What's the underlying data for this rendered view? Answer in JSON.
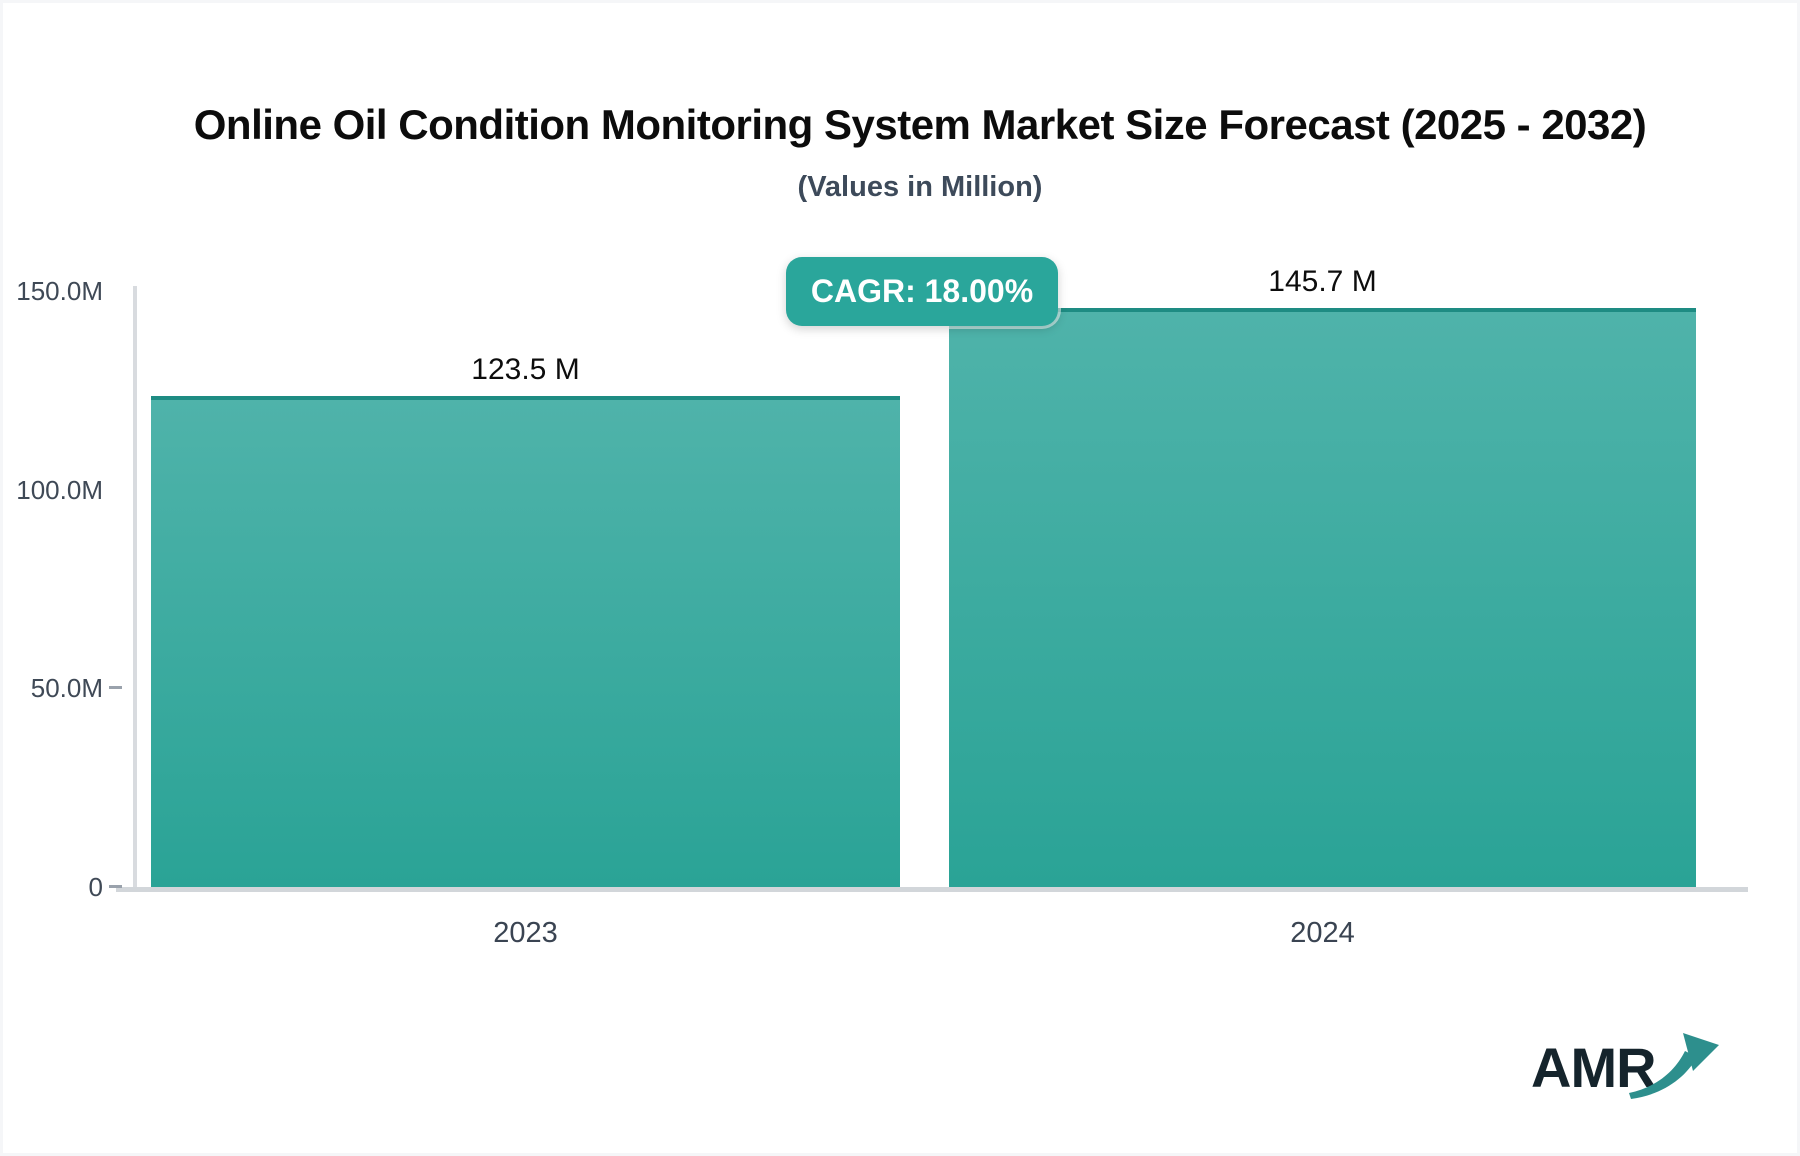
{
  "page": {
    "title": "Online Oil Condition Monitoring System Market Size Forecast (2025 - 2032)",
    "subtitle": "(Values in Million)"
  },
  "cagr_badge": {
    "label": "CAGR: 18.00%",
    "color": "#2aa69b"
  },
  "chart_data": {
    "type": "bar",
    "title": "Online Oil Condition Monitoring System Market Size Forecast (2025 - 2032)",
    "subtitle": "(Values in Million)",
    "unit": "Million",
    "categories": [
      "2023",
      "2024"
    ],
    "values": [
      123.5,
      145.7
    ],
    "value_labels": [
      "123.5 M",
      "145.7 M"
    ],
    "cagr_percent": "18.00%",
    "ylim": [
      0,
      150
    ],
    "yticks": [
      {
        "label": "150.0M",
        "value": 150,
        "dash": false
      },
      {
        "label": "100.0M",
        "value": 100,
        "dash": false
      },
      {
        "label": "50.0M",
        "value": 50,
        "dash": true
      },
      {
        "label": "0",
        "value": 0,
        "dash": true
      }
    ],
    "grid": false,
    "legend": false,
    "bar_color_top": "#4fb3aa",
    "bar_color_bottom": "#2aa396",
    "bar_border_color": "#1e8c83",
    "axis_color": "#d2d6da"
  },
  "logo": {
    "text": "AMR",
    "arrow_icon": "trend-up-arrow",
    "text_color": "#15242c",
    "arrow_color": "#2d8f8d"
  }
}
